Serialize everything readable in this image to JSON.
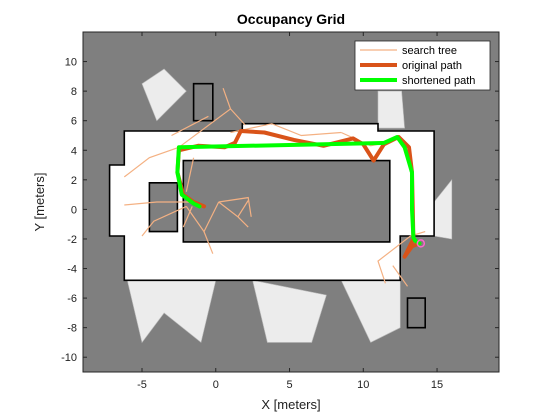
{
  "chart_data": {
    "type": "line",
    "title": "Occupancy Grid",
    "xlabel": "X [meters]",
    "ylabel": "Y [meters]",
    "xlim": [
      -9,
      19.2
    ],
    "ylim": [
      -11,
      12
    ],
    "xticks": [
      -5,
      0,
      5,
      10,
      15
    ],
    "yticks": [
      -10,
      -8,
      -6,
      -4,
      -2,
      0,
      2,
      4,
      6,
      8,
      10
    ],
    "legend_position": "top-right",
    "colors": {
      "unknown": "#7f7f7f",
      "free": "#ffffff",
      "occupied": "#000000",
      "search_tree": "#f4b183",
      "original_path": "#d95319",
      "shortened_path": "#00ff00",
      "goal_marker": "#ff66cc"
    },
    "map_features": {
      "free_region_outer": [
        [
          -6.2,
          5.3
        ],
        [
          1.8,
          5.3
        ],
        [
          1.8,
          5.8
        ],
        [
          11.0,
          5.8
        ],
        [
          11.0,
          5.3
        ],
        [
          14.8,
          5.3
        ],
        [
          14.8,
          -1.8
        ],
        [
          12.5,
          -1.8
        ],
        [
          12.5,
          -4.8
        ],
        [
          -6.2,
          -4.8
        ],
        [
          -6.2,
          -1.8
        ],
        [
          -7.2,
          -1.8
        ],
        [
          -7.2,
          3.0
        ],
        [
          -6.2,
          3.0
        ]
      ],
      "obstacle_center": [
        [
          -2.2,
          3.3
        ],
        [
          11.8,
          3.3
        ],
        [
          11.8,
          -2.2
        ],
        [
          -2.2,
          -2.2
        ]
      ],
      "obstacle_room_left": [
        [
          -4.5,
          1.8
        ],
        [
          -2.6,
          1.8
        ],
        [
          -2.6,
          -1.5
        ],
        [
          -4.5,
          -1.5
        ]
      ],
      "obstacle_block_top_left": [
        [
          -1.5,
          8.5
        ],
        [
          -0.2,
          8.5
        ],
        [
          -0.2,
          6.0
        ],
        [
          -1.5,
          6.0
        ]
      ],
      "obstacle_block_bottom_right": [
        [
          13.0,
          -6.0
        ],
        [
          14.2,
          -6.0
        ],
        [
          14.2,
          -8.0
        ],
        [
          13.0,
          -8.0
        ]
      ],
      "free_fan_top_left": [
        [
          -5.0,
          8.5
        ],
        [
          -3.5,
          9.5
        ],
        [
          -2.0,
          8.0
        ],
        [
          -4.0,
          6.0
        ]
      ],
      "free_fan_top_right": [
        [
          11.0,
          8.0
        ],
        [
          12.6,
          8.0
        ],
        [
          12.8,
          5.5
        ],
        [
          11.0,
          5.5
        ]
      ],
      "free_fan_bottom_left": [
        [
          -6.0,
          -4.8
        ],
        [
          -5.0,
          -9.0
        ],
        [
          -3.5,
          -7.0
        ],
        [
          -1.0,
          -9.0
        ],
        [
          0.0,
          -4.8
        ]
      ],
      "free_fan_bottom_mid": [
        [
          2.5,
          -4.8
        ],
        [
          3.5,
          -9.0
        ],
        [
          6.5,
          -9.0
        ],
        [
          7.5,
          -5.8
        ]
      ],
      "free_fan_bottom_right": [
        [
          8.5,
          -4.8
        ],
        [
          10.5,
          -9.0
        ],
        [
          12.5,
          -8.0
        ],
        [
          12.5,
          -4.8
        ]
      ],
      "free_fan_right": [
        [
          14.8,
          0.5
        ],
        [
          16.0,
          2.0
        ],
        [
          16.0,
          -2.0
        ],
        [
          14.8,
          -1.8
        ]
      ]
    },
    "series": [
      {
        "name": "search tree",
        "color": "#f4b183",
        "segments": [
          [
            [
              -2.5,
              4.2
            ],
            [
              -4.5,
              3.5
            ],
            [
              -6.2,
              2.2
            ]
          ],
          [
            [
              -2.5,
              4.2
            ],
            [
              1.0,
              6.8
            ],
            [
              2.0,
              5.7
            ]
          ],
          [
            [
              -0.5,
              6.3
            ],
            [
              -3.0,
              5.0
            ]
          ],
          [
            [
              1.0,
              6.8
            ],
            [
              0.5,
              8.2
            ]
          ],
          [
            [
              1.0,
              5.2
            ],
            [
              3.8,
              5.8
            ],
            [
              5.8,
              5.0
            ],
            [
              8.5,
              5.2
            ]
          ],
          [
            [
              8.5,
              5.2
            ],
            [
              10.5,
              4.3
            ],
            [
              12.0,
              4.6
            ]
          ],
          [
            [
              -2.0,
              1.2
            ],
            [
              -1.5,
              3.5
            ]
          ],
          [
            [
              -1.8,
              0.5
            ],
            [
              -4.0,
              0.5
            ],
            [
              -6.2,
              0.3
            ]
          ],
          [
            [
              -2.0,
              0.2
            ],
            [
              -4.2,
              -0.8
            ],
            [
              -5.0,
              -1.8
            ]
          ],
          [
            [
              -2.0,
              0.2
            ],
            [
              -0.8,
              -1.5
            ],
            [
              0.2,
              0.5
            ]
          ],
          [
            [
              0.2,
              0.5
            ],
            [
              1.5,
              -0.5
            ],
            [
              2.2,
              -1.2
            ]
          ],
          [
            [
              1.5,
              -0.5
            ],
            [
              2.2,
              0.6
            ]
          ],
          [
            [
              0.2,
              0.5
            ],
            [
              2.2,
              0.8
            ],
            [
              2.4,
              -0.5
            ]
          ],
          [
            [
              -0.8,
              -1.5
            ],
            [
              -0.2,
              -3.0
            ]
          ],
          [
            [
              -1.6,
              0.2
            ],
            [
              -2.2,
              -1.2
            ]
          ],
          [
            [
              13.2,
              -1.8
            ],
            [
              11.0,
              -3.5
            ],
            [
              11.5,
              -5.0
            ]
          ],
          [
            [
              12.0,
              -3.8
            ],
            [
              13.0,
              -5.2
            ]
          ],
          [
            [
              13.2,
              -1.8
            ],
            [
              14.2,
              -1.5
            ]
          ]
        ]
      },
      {
        "name": "original path",
        "color": "#d95319",
        "x": [
          13.8,
          13.3,
          12.8,
          13.4,
          13.3,
          13.1,
          12.4,
          11.4,
          10.7,
          10.0,
          9.3,
          7.3,
          5.3,
          3.3,
          1.7,
          1.3,
          0.6,
          -1.2,
          -2.5,
          -2.6,
          -2.2,
          -1.5,
          -0.8
        ],
        "y": [
          -2.3,
          -2.5,
          -3.2,
          -2.0,
          2.5,
          4.2,
          4.9,
          4.4,
          3.3,
          4.4,
          4.8,
          4.3,
          4.7,
          5.2,
          5.3,
          4.5,
          4.2,
          4.3,
          4.0,
          2.5,
          1.0,
          0.5,
          0.2
        ]
      },
      {
        "name": "shortened path",
        "color": "#00ff00",
        "x": [
          13.8,
          13.5,
          13.4,
          13.3,
          13.3,
          12.8,
          12.3,
          11.4,
          -2.5,
          -2.6,
          -2.3,
          -1.5,
          -1.1
        ],
        "y": [
          -2.3,
          -2.1,
          -1.9,
          0.0,
          2.5,
          4.2,
          4.9,
          4.5,
          4.2,
          2.5,
          1.0,
          0.4,
          0.2
        ]
      }
    ],
    "goal_point": [
      13.9,
      -2.3
    ]
  }
}
